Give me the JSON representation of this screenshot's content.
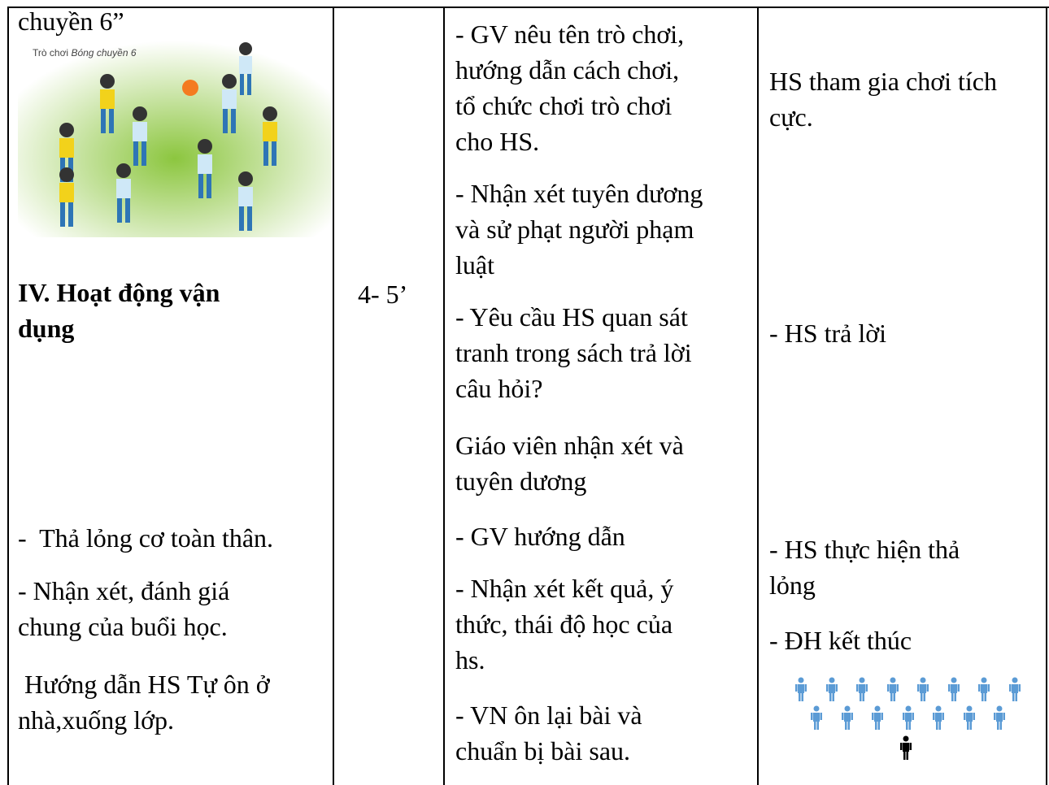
{
  "table": {
    "col1": {
      "heading_cont": "chuyền 6”",
      "image_caption": {
        "prefix": "Trò chơi",
        "italic": "Bóng chuyền 6"
      },
      "section_title": [
        "IV. Hoạt động vận",
        "dụng"
      ],
      "items": [
        [
          "-  Thả lỏng cơ toàn thân."
        ],
        [
          "- Nhận xét, đánh giá",
          "chung của buổi học."
        ],
        [
          " Hướng dẫn HS Tự ôn ở",
          "nhà,xuống lớp."
        ]
      ]
    },
    "col2": {
      "time": "4- 5’"
    },
    "col3": {
      "paragraphs": [
        [
          "- GV nêu tên trò chơi,",
          "hướng dẫn cách chơi,",
          "tổ chức chơi trò chơi",
          "cho HS."
        ],
        [
          "- Nhận xét tuyên dương",
          "và sử phạt người phạm",
          "luật"
        ],
        [
          "- Yêu cầu HS quan sát",
          "tranh trong sách trả lời",
          "câu hỏi?"
        ],
        [
          "Giáo viên nhận xét và",
          "tuyên dương"
        ],
        [
          "- GV hướng dẫn"
        ],
        [
          "- Nhận xét kết quả, ý",
          "thức, thái độ học của",
          "hs."
        ],
        [
          "- VN ôn lại bài và",
          "chuẩn bị bài sau."
        ]
      ]
    },
    "col4": {
      "paragraphs": [
        [
          "HS tham gia chơi tích",
          "cực."
        ],
        [
          "- HS trả lời"
        ],
        [
          "- HS thực hiện thả",
          "lỏng"
        ],
        [
          "- ĐH kết thúc"
        ]
      ]
    }
  }
}
